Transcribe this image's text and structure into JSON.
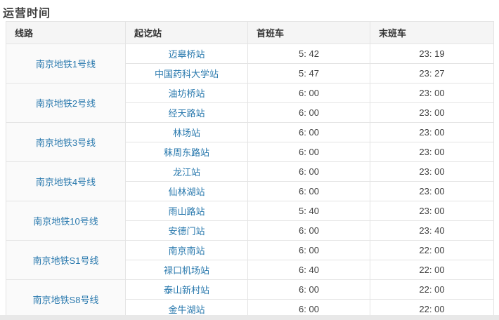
{
  "page": {
    "title": "运营时间"
  },
  "colors": {
    "link_blue": "#2878ad",
    "header_bg": "#f5f5f5",
    "border": "#e4e4e4",
    "text_dark": "#404040"
  },
  "table": {
    "headers": [
      "线路",
      "起讫站",
      "首班车",
      "末班车"
    ],
    "groups": [
      {
        "line": "南京地铁1号线",
        "rows": [
          {
            "station": "迈皋桥站",
            "first": "5: 42",
            "last": "23: 19"
          },
          {
            "station": "中国药科大学站",
            "first": "5: 47",
            "last": "23: 27"
          }
        ]
      },
      {
        "line": "南京地铁2号线",
        "rows": [
          {
            "station": "油坊桥站",
            "first": "6: 00",
            "last": "23: 00"
          },
          {
            "station": "经天路站",
            "first": "6: 00",
            "last": "23: 00"
          }
        ]
      },
      {
        "line": "南京地铁3号线",
        "rows": [
          {
            "station": "林场站",
            "first": "6: 00",
            "last": "23: 00"
          },
          {
            "station": "秣周东路站",
            "first": "6: 00",
            "last": "23: 00"
          }
        ]
      },
      {
        "line": "南京地铁4号线",
        "rows": [
          {
            "station": "龙江站",
            "first": "6: 00",
            "last": "23: 00"
          },
          {
            "station": "仙林湖站",
            "first": "6: 00",
            "last": "23: 00"
          }
        ]
      },
      {
        "line": "南京地铁10号线",
        "rows": [
          {
            "station": "雨山路站",
            "first": "5: 40",
            "last": "23: 00"
          },
          {
            "station": "安德门站",
            "first": "6: 00",
            "last": "23: 40"
          }
        ]
      },
      {
        "line": "南京地铁S1号线",
        "rows": [
          {
            "station": "南京南站",
            "first": "6: 00",
            "last": "22: 00"
          },
          {
            "station": "禄口机场站",
            "first": "6: 40",
            "last": "22: 00"
          }
        ]
      },
      {
        "line": "南京地铁S8号线",
        "rows": [
          {
            "station": "泰山新村站",
            "first": "6: 00",
            "last": "22: 00"
          },
          {
            "station": "金牛湖站",
            "first": "6: 00",
            "last": "22: 00"
          }
        ]
      }
    ]
  }
}
